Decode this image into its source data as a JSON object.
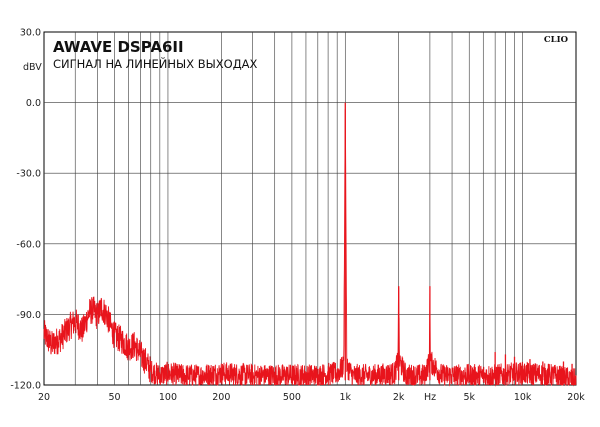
{
  "chart_data": {
    "type": "line",
    "title": "AWAVE DSPA6II",
    "subtitle": "СИГНАЛ НА ЛИНЕЙНЫХ ВЫХОДАХ",
    "brand": "CLIO",
    "ylabel": "dBV",
    "xlabel": "Hz",
    "x_scale": "log",
    "xlim": [
      20,
      20000
    ],
    "ylim": [
      -120,
      30
    ],
    "grid": true,
    "y_ticks": [
      "30.0",
      "0.0",
      "-30.0",
      "-60.0",
      "-90.0",
      "-120.0"
    ],
    "y_tick_values": [
      30,
      0,
      -30,
      -60,
      -90,
      -120
    ],
    "x_ticks": [
      "20",
      "50",
      "100",
      "200",
      "500",
      "1k",
      "2k",
      "5k",
      "10k",
      "20k"
    ],
    "x_tick_values": [
      20,
      50,
      100,
      200,
      500,
      1000,
      2000,
      5000,
      10000,
      20000
    ],
    "series": [
      {
        "color": "#e8141c",
        "x": [
          20,
          22,
          25,
          28,
          30,
          33,
          36,
          38,
          40,
          42,
          45,
          48,
          50,
          55,
          60,
          65,
          70,
          75,
          80,
          90,
          100,
          120,
          150,
          200,
          300,
          500,
          700,
          900,
          980,
          1000,
          1020,
          1100,
          1500,
          1900,
          1980,
          2000,
          2020,
          2200,
          2800,
          2980,
          3000,
          3020,
          3500,
          5000,
          7000,
          10000,
          15000,
          20000
        ],
        "y": [
          -98,
          -103,
          -100,
          -95,
          -93,
          -97,
          -89,
          -88,
          -91,
          -87,
          -90,
          -96,
          -99,
          -101,
          -104,
          -103,
          -107,
          -110,
          -114,
          -116,
          -115,
          -116,
          -116,
          -115,
          -116,
          -116,
          -116,
          -115,
          -112,
          0,
          -112,
          -116,
          -116,
          -115,
          -110,
          -78,
          -110,
          -116,
          -116,
          -110,
          -78,
          -110,
          -116,
          -116,
          -116,
          -115,
          -116,
          -118
        ]
      }
    ],
    "spurs": [
      {
        "x": 1000,
        "y": 0
      },
      {
        "x": 2000,
        "y": -78
      },
      {
        "x": 3000,
        "y": -78
      },
      {
        "x": 7000,
        "y": -106
      },
      {
        "x": 8000,
        "y": -107
      },
      {
        "x": 9000,
        "y": -108
      },
      {
        "x": 11000,
        "y": -109
      },
      {
        "x": 13000,
        "y": -110
      },
      {
        "x": 14000,
        "y": -111
      },
      {
        "x": 17000,
        "y": -110
      },
      {
        "x": 19000,
        "y": -111
      }
    ]
  }
}
